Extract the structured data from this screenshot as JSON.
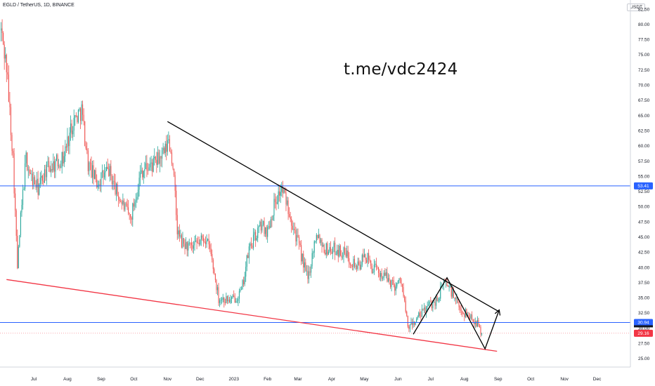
{
  "header": {
    "symbol_title": "EGLD / TetherUS, 1D, BINANCE",
    "currency_button": "USDT"
  },
  "watermark": "t.me/vdc2424",
  "colors": {
    "up_candle": "#26a69a",
    "down_candle": "#ef5350",
    "hline": "#2962ff",
    "trend_resistance": "#000000",
    "trend_support": "#f23645",
    "tag_blue": "#2962ff",
    "tag_red": "#f23645",
    "tag_dark": "#131722"
  },
  "chart_data": {
    "type": "candlestick",
    "title": "EGLD / TetherUS, 1D, BINANCE",
    "y_axis": {
      "ylim": [
        23.6,
        84.0
      ],
      "ticks": [
        25.0,
        27.5,
        30.0,
        32.5,
        35.0,
        37.5,
        40.0,
        42.5,
        45.0,
        47.5,
        50.0,
        52.5,
        55.0,
        57.5,
        60.0,
        62.5,
        65.0,
        67.5,
        70.0,
        72.5,
        75.0,
        77.5,
        80.0,
        82.5
      ],
      "position": "right"
    },
    "x_axis": {
      "ticks": [
        "Jul",
        "Aug",
        "Sep",
        "Oct",
        "Nov",
        "Dec",
        "2023",
        "Feb",
        "Mar",
        "Apr",
        "May",
        "Jun",
        "Jul",
        "Aug",
        "Sep",
        "Oct",
        "Nov",
        "Dec"
      ],
      "range": [
        "2022-06-01",
        "2023-12-31"
      ]
    },
    "close_path": [
      [
        "2022-06-01",
        79.0
      ],
      [
        "2022-06-06",
        73.0
      ],
      [
        "2022-06-12",
        58.0
      ],
      [
        "2022-06-16",
        40.0
      ],
      [
        "2022-06-19",
        48.0
      ],
      [
        "2022-06-24",
        58.0
      ],
      [
        "2022-06-28",
        55.0
      ],
      [
        "2022-07-05",
        53.0
      ],
      [
        "2022-07-12",
        56.0
      ],
      [
        "2022-07-20",
        57.0
      ],
      [
        "2022-07-28",
        58.0
      ],
      [
        "2022-08-06",
        64.0
      ],
      [
        "2022-08-14",
        66.0
      ],
      [
        "2022-08-20",
        57.0
      ],
      [
        "2022-08-28",
        54.0
      ],
      [
        "2022-09-08",
        56.0
      ],
      [
        "2022-09-16",
        52.0
      ],
      [
        "2022-09-28",
        48.0
      ],
      [
        "2022-10-08",
        56.0
      ],
      [
        "2022-10-20",
        57.0
      ],
      [
        "2022-10-30",
        59.0
      ],
      [
        "2022-11-02",
        61.0
      ],
      [
        "2022-11-06",
        57.0
      ],
      [
        "2022-11-10",
        46.0
      ],
      [
        "2022-11-14",
        44.0
      ],
      [
        "2022-11-24",
        43.0
      ],
      [
        "2022-12-05",
        45.0
      ],
      [
        "2022-12-10",
        43.0
      ],
      [
        "2022-12-18",
        35.0
      ],
      [
        "2022-12-30",
        34.5
      ],
      [
        "2023-01-08",
        36.0
      ],
      [
        "2023-01-15",
        43.0
      ],
      [
        "2023-01-26",
        47.0
      ],
      [
        "2023-02-01",
        46.0
      ],
      [
        "2023-02-08",
        51.0
      ],
      [
        "2023-02-14",
        53.0
      ],
      [
        "2023-02-20",
        50.0
      ],
      [
        "2023-03-01",
        44.0
      ],
      [
        "2023-03-10",
        38.0
      ],
      [
        "2023-03-18",
        46.0
      ],
      [
        "2023-03-26",
        43.0
      ],
      [
        "2023-04-05",
        43.0
      ],
      [
        "2023-04-15",
        42.0
      ],
      [
        "2023-04-25",
        40.0
      ],
      [
        "2023-05-02",
        42.0
      ],
      [
        "2023-05-08",
        40.0
      ],
      [
        "2023-05-20",
        38.5
      ],
      [
        "2023-05-29",
        37.0
      ],
      [
        "2023-06-04",
        38.0
      ],
      [
        "2023-06-10",
        30.0
      ],
      [
        "2023-06-16",
        31.0
      ],
      [
        "2023-06-28",
        33.5
      ],
      [
        "2023-07-08",
        35.0
      ],
      [
        "2023-07-14",
        38.0
      ],
      [
        "2023-07-20",
        36.0
      ],
      [
        "2023-07-28",
        33.0
      ],
      [
        "2023-08-06",
        32.0
      ],
      [
        "2023-08-12",
        31.0
      ],
      [
        "2023-08-17",
        29.16
      ]
    ],
    "horizontal_levels": [
      {
        "value": 53.41,
        "label": "53.41",
        "color": "#2962ff"
      },
      {
        "value": 30.94,
        "label": "30.94",
        "color": "#2962ff"
      }
    ],
    "last_price": {
      "value": 29.16,
      "label": "29.16",
      "color": "#f23645"
    },
    "trendlines": [
      {
        "name": "descending-resistance",
        "color": "#000000",
        "from": [
          "2022-11-01",
          64.0
        ],
        "to": [
          "2023-09-01",
          32.8
        ]
      },
      {
        "name": "descending-support",
        "color": "#f23645",
        "from": [
          "2022-06-06",
          38.0
        ],
        "to": [
          "2023-08-31",
          26.2
        ]
      }
    ],
    "projection_path": [
      [
        "2023-06-15",
        29.0
      ],
      [
        "2023-07-16",
        38.3
      ],
      [
        "2023-08-20",
        26.6
      ],
      [
        "2023-09-02",
        33.0
      ]
    ],
    "grid": false,
    "legend": "none"
  }
}
